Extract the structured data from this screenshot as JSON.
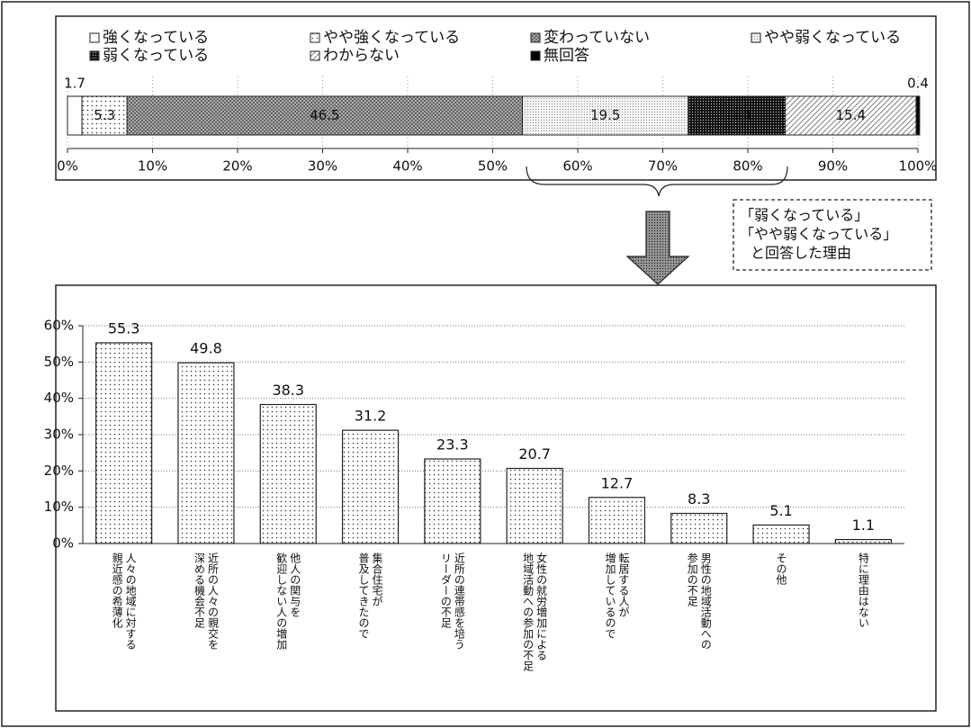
{
  "chart_data": [
    {
      "type": "stacked_bar_horizontal",
      "series": [
        {
          "name": "強くなっている",
          "pattern": "white",
          "values": [
            1.7
          ]
        },
        {
          "name": "やや強くなっている",
          "pattern": "dots",
          "values": [
            5.3
          ]
        },
        {
          "name": "変わっていない",
          "pattern": "grid",
          "values": [
            46.5
          ]
        },
        {
          "name": "やや弱くなっている",
          "pattern": "fine",
          "values": [
            19.5
          ]
        },
        {
          "name": "弱くなっている",
          "pattern": "dark",
          "values": [
            11.4
          ]
        },
        {
          "name": "わからない",
          "pattern": "hatch",
          "values": [
            15.4
          ]
        },
        {
          "name": "無回答",
          "pattern": "black",
          "values": [
            0.4
          ]
        }
      ],
      "xlim": [
        0,
        100
      ],
      "xticks": [
        {
          "value": 0,
          "label": "0%"
        },
        {
          "value": 10,
          "label": "10%"
        },
        {
          "value": 20,
          "label": "20%"
        },
        {
          "value": 30,
          "label": "30%"
        },
        {
          "value": 40,
          "label": "40%"
        },
        {
          "value": 50,
          "label": "50%"
        },
        {
          "value": 60,
          "label": "60%"
        },
        {
          "value": 70,
          "label": "70%"
        },
        {
          "value": 80,
          "label": "80%"
        },
        {
          "value": 90,
          "label": "90%"
        },
        {
          "value": 100,
          "label": "100%"
        }
      ],
      "annotation": [
        "「弱くなっている」",
        "「やや弱くなっている」",
        "と回答した理由"
      ]
    },
    {
      "type": "bar",
      "pattern": "dots",
      "categories": [
        [
          "人々の地域に対する",
          "親近感の希薄化"
        ],
        [
          "近所の人々の親交を",
          "深める機会不足"
        ],
        [
          "他人の関与を",
          "歓迎しない人の増加"
        ],
        [
          "集合住宅が",
          "普及してきたので"
        ],
        [
          "近所の連帯感を培う",
          "リーダーの不足"
        ],
        [
          "女性の就労増加による",
          "地域活動への参加の不足"
        ],
        [
          "転居する人が",
          "増加しているので"
        ],
        [
          "男性の地域活動への",
          "参加の不足"
        ],
        [
          "その他"
        ],
        [
          "特に理由はない"
        ]
      ],
      "values": [
        55.3,
        49.8,
        38.3,
        31.2,
        23.3,
        20.7,
        12.7,
        8.3,
        5.1,
        1.1
      ],
      "ylim": [
        0,
        60
      ],
      "yticks": [
        {
          "value": 0,
          "label": "0%"
        },
        {
          "value": 10,
          "label": "10%"
        },
        {
          "value": 20,
          "label": "20%"
        },
        {
          "value": 30,
          "label": "30%"
        },
        {
          "value": 40,
          "label": "40%"
        },
        {
          "value": 50,
          "label": "50%"
        },
        {
          "value": 60,
          "label": "60%"
        }
      ],
      "grid": true
    }
  ]
}
